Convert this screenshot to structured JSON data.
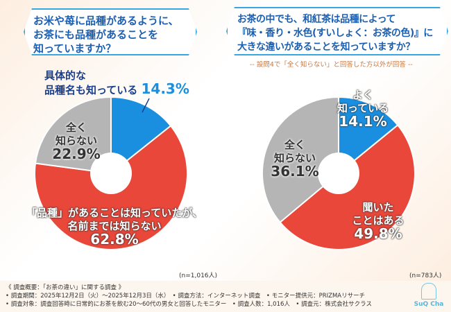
{
  "questions": {
    "left": [
      "お米や苺に品種があるように、",
      "お茶にも品種があることを",
      "知っていますか？"
    ],
    "right": [
      "お茶の中でも、和紅茶は品種によって",
      "『味・香り・水色(すいしょく：お茶の色)』に",
      "大きな違いがあることを知っていますか？"
    ],
    "right_note": "-- 設問4で「全く知らない」と回答した方以外が回答 --"
  },
  "colors": {
    "blue": "#1a8fe0",
    "red": "#e8473a",
    "gray": "#b5b5b5",
    "title": "#1c5fb0"
  },
  "chart_data": [
    {
      "type": "pie",
      "categories": [
        "具体的な品種名も知っている",
        "「品種」があることは知っていたが、名前までは知らない",
        "全く知らない"
      ],
      "values": [
        14.3,
        62.8,
        22.9
      ],
      "unit": "%",
      "sample": "(n=1,016人)"
    },
    {
      "type": "pie",
      "categories": [
        "よく知っている",
        "聞いたことはある",
        "全く知らない"
      ],
      "values": [
        14.1,
        49.8,
        36.1
      ],
      "unit": "%",
      "sample": "(n=783人)"
    }
  ],
  "labels": {
    "l0a": "具体的な",
    "l0b": "品種名も知っている",
    "l0p": "14.3%",
    "l1a": "「品種」があることは知っていたが、",
    "l1b": "名前までは知らない",
    "l1p": "62.8%",
    "l2a": "全く",
    "l2b": "知らない",
    "l2p": "22.9%",
    "r0a": "よく",
    "r0b": "知っている",
    "r0p": "14.1%",
    "r1a": "聞いた",
    "r1b": "ことはある",
    "r1p": "49.8%",
    "r2a": "全く",
    "r2b": "知らない",
    "r2p": "36.1%"
  },
  "footer": [
    "《 調査概要：「お茶の違い」に関する調査 》",
    "• 調査期間：2025年12月2日（火）～2025年12月3日（水）　• 調査方法：インターネット調査　• モニター提供元：PRIZMAリサーチ",
    "• 調査対象：調査回答時に日常的にお茶を飲む20～60代の男女と回答したモニター　• 調査人数：1,016人　• 調査元：株式会社サクラス"
  ],
  "logo": "SuQ Cha"
}
